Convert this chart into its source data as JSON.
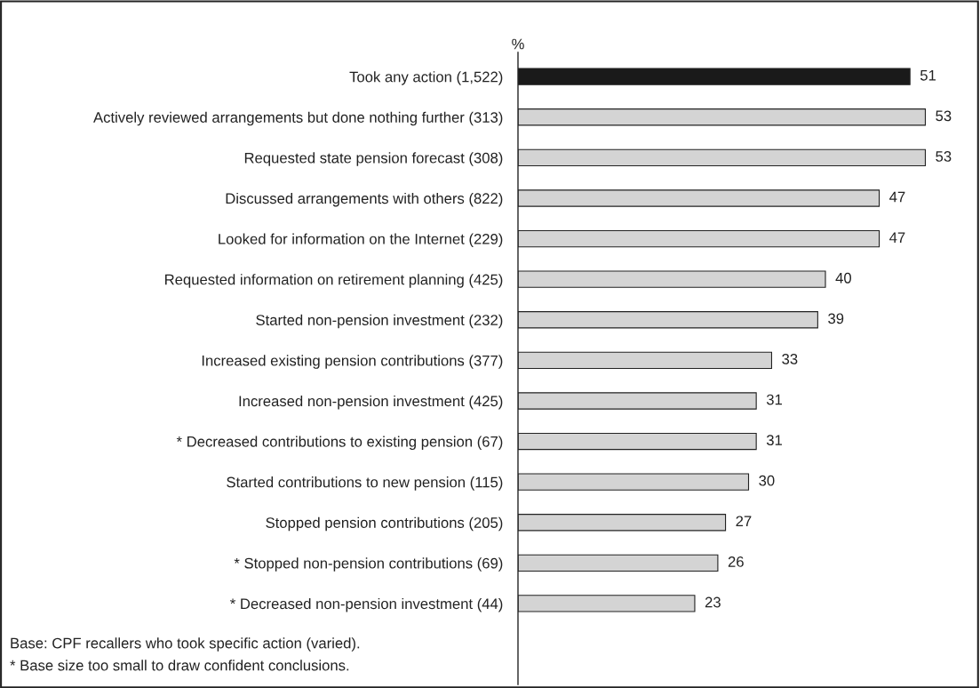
{
  "chart_data": {
    "type": "bar",
    "orientation": "horizontal",
    "xlabel": "%",
    "tick_labels": "y",
    "data_labels": true,
    "categories": [
      "Took any action (1,522)",
      "Actively reviewed arrangements but done nothing further (313)",
      "Requested state pension forecast (308)",
      "Discussed arrangements with others (822)",
      "Looked for information on the Internet (229)",
      "Requested information on retirement planning (425)",
      "Started non-pension investment (232)",
      "Increased existing pension contributions (377)",
      "Increased non-pension investment (425)",
      "* Decreased contributions to existing pension (67)",
      "Started contributions to new pension (115)",
      "Stopped pension contributions (205)",
      "* Stopped non-pension contributions (69)",
      "* Decreased non-pension investment (44)"
    ],
    "values": [
      51,
      53,
      53,
      47,
      47,
      40,
      39,
      33,
      31,
      31,
      30,
      27,
      26,
      23
    ],
    "colors": [
      "#1a1a1a",
      "#d4d4d4",
      "#d4d4d4",
      "#d4d4d4",
      "#d4d4d4",
      "#d4d4d4",
      "#d4d4d4",
      "#d4d4d4",
      "#d4d4d4",
      "#d4d4d4",
      "#d4d4d4",
      "#d4d4d4",
      "#d4d4d4",
      "#d4d4d4"
    ],
    "annotations": [
      "Base: CPF recallers who took specific action (varied).",
      "* Base size too small to draw confident conclusions."
    ]
  }
}
